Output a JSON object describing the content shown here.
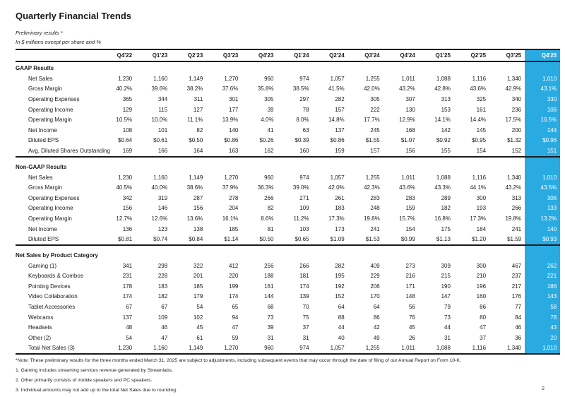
{
  "page": {
    "title": "Quarterly Financial Trends",
    "subtitle1": "Preliminary results *",
    "subtitle2": "In $ millions except per share and %",
    "page_number": "2",
    "highlight_color": "#29ABE2"
  },
  "table": {
    "columns": [
      "Q4'22",
      "Q1'23",
      "Q2'23",
      "Q3'23",
      "Q4'23",
      "Q1'24",
      "Q2'24",
      "Q3'24",
      "Q4'24",
      "Q1'25",
      "Q2'25",
      "Q3'25",
      "Q4'25"
    ],
    "highlight_column": "Q4'25",
    "sections": [
      {
        "title": "GAAP Results",
        "rows": [
          {
            "label": "Net Sales",
            "values": [
              "1,230",
              "1,160",
              "1,149",
              "1,270",
              "960",
              "974",
              "1,057",
              "1,255",
              "1,011",
              "1,088",
              "1,116",
              "1,340",
              "1,010"
            ]
          },
          {
            "label": "Gross Margin",
            "values": [
              "40.2%",
              "39.6%",
              "38.2%",
              "37.6%",
              "35.8%",
              "38.5%",
              "41.5%",
              "42.0%",
              "43.2%",
              "42.8%",
              "43.6%",
              "42.9%",
              "43.1%"
            ]
          },
          {
            "label": "Operating Expenses",
            "values": [
              "365",
              "344",
              "311",
              "301",
              "305",
              "297",
              "282",
              "305",
              "307",
              "313",
              "325",
              "340",
              "330"
            ]
          },
          {
            "label": "Operating Income",
            "values": [
              "129",
              "115",
              "127",
              "177",
              "39",
              "78",
              "157",
              "222",
              "130",
              "153",
              "161",
              "236",
              "106"
            ]
          },
          {
            "label": "Operating Margin",
            "values": [
              "10.5%",
              "10.0%",
              "11.1%",
              "13.9%",
              "4.0%",
              "8.0%",
              "14.8%",
              "17.7%",
              "12.9%",
              "14.1%",
              "14.4%",
              "17.5%",
              "10.5%"
            ]
          },
          {
            "label": "Net Income",
            "values": [
              "108",
              "101",
              "82",
              "140",
              "41",
              "63",
              "137",
              "245",
              "168",
              "142",
              "145",
              "200",
              "144"
            ]
          },
          {
            "label": "Diluted EPS",
            "values": [
              "$0.64",
              "$0.61",
              "$0.50",
              "$0.86",
              "$0.26",
              "$0.39",
              "$0.86",
              "$1.55",
              "$1.07",
              "$0.92",
              "$0.95",
              "$1.32",
              "$0.96"
            ]
          },
          {
            "label": "Avg. Diluted Shares Outstanding",
            "values": [
              "169",
              "166",
              "164",
              "163",
              "162",
              "160",
              "159",
              "157",
              "156",
              "155",
              "154",
              "152",
              "151"
            ]
          }
        ]
      },
      {
        "title": "Non-GAAP Results",
        "rows": [
          {
            "label": "Net Sales",
            "values": [
              "1,230",
              "1,160",
              "1,149",
              "1,270",
              "960",
              "974",
              "1,057",
              "1,255",
              "1,011",
              "1,088",
              "1,116",
              "1,340",
              "1,010"
            ]
          },
          {
            "label": "Gross Margin",
            "values": [
              "40.5%",
              "40.0%",
              "38.6%",
              "37.9%",
              "36.3%",
              "39.0%",
              "42.0%",
              "42.3%",
              "43.6%",
              "43.3%",
              "44.1%",
              "43.2%",
              "43.5%"
            ]
          },
          {
            "label": "Operating Expenses",
            "values": [
              "342",
              "319",
              "287",
              "278",
              "266",
              "271",
              "261",
              "283",
              "283",
              "289",
              "300",
              "313",
              "306"
            ]
          },
          {
            "label": "Operating Income",
            "values": [
              "156",
              "146",
              "156",
              "204",
              "82",
              "109",
              "183",
              "248",
              "159",
              "182",
              "193",
              "266",
              "133"
            ]
          },
          {
            "label": "Operating Margin",
            "values": [
              "12.7%",
              "12.6%",
              "13.6%",
              "16.1%",
              "8.6%",
              "11.2%",
              "17.3%",
              "19.8%",
              "15.7%",
              "16.8%",
              "17.3%",
              "19.8%",
              "13.2%"
            ]
          },
          {
            "label": "Net Income",
            "values": [
              "136",
              "123",
              "138",
              "185",
              "81",
              "103",
              "173",
              "241",
              "154",
              "175",
              "184",
              "241",
              "140"
            ]
          },
          {
            "label": "Diluted EPS",
            "values": [
              "$0.81",
              "$0.74",
              "$0.84",
              "$1.14",
              "$0.50",
              "$0.65",
              "$1.09",
              "$1.53",
              "$0.99",
              "$1.13",
              "$1.20",
              "$1.59",
              "$0.93"
            ]
          }
        ]
      },
      {
        "title": "Net Sales by Product Category",
        "rows": [
          {
            "label": "Gaming (1)",
            "values": [
              "341",
              "298",
              "322",
              "412",
              "256",
              "266",
              "282",
              "409",
              "273",
              "309",
              "300",
              "467",
              "262"
            ]
          },
          {
            "label": "Keyboards & Combos",
            "values": [
              "231",
              "228",
              "201",
              "220",
              "188",
              "181",
              "195",
              "229",
              "216",
              "215",
              "210",
              "237",
              "221"
            ]
          },
          {
            "label": "Pointing Devices",
            "values": [
              "178",
              "183",
              "185",
              "199",
              "161",
              "174",
              "192",
              "206",
              "171",
              "190",
              "196",
              "217",
              "186"
            ]
          },
          {
            "label": "Video Collaboration",
            "values": [
              "174",
              "182",
              "179",
              "174",
              "144",
              "139",
              "152",
              "170",
              "148",
              "147",
              "160",
              "176",
              "143"
            ]
          },
          {
            "label": "Tablet Accessories",
            "values": [
              "67",
              "67",
              "54",
              "65",
              "68",
              "70",
              "64",
              "64",
              "56",
              "79",
              "86",
              "77",
              "58"
            ]
          },
          {
            "label": "Webcams",
            "values": [
              "137",
              "109",
              "102",
              "94",
              "73",
              "75",
              "88",
              "86",
              "76",
              "73",
              "80",
              "84",
              "78"
            ]
          },
          {
            "label": "Headsets",
            "values": [
              "48",
              "46",
              "45",
              "47",
              "39",
              "37",
              "44",
              "42",
              "45",
              "44",
              "47",
              "46",
              "43"
            ]
          },
          {
            "label": "Other (2)",
            "values": [
              "54",
              "47",
              "61",
              "59",
              "31",
              "31",
              "40",
              "49",
              "26",
              "31",
              "37",
              "36",
              "20"
            ]
          },
          {
            "label": "Total Net Sales (3)",
            "values": [
              "1,230",
              "1,160",
              "1,149",
              "1,270",
              "960",
              "974",
              "1,057",
              "1,255",
              "1,011",
              "1,088",
              "1,116",
              "1,340",
              "1,010"
            ]
          }
        ]
      }
    ]
  },
  "notes": {
    "asterisk_note": "*Note: These preliminary results for the three months ended March 31, 2025 are subject to adjustments, including subsequent events that may occur through the date of filing of our Annual Report on Form 10-K.",
    "footnotes": [
      "1. Gaming includes streaming services revenue generated by Streamlabs.",
      "2. Other primarily consists of mobile speakers and PC speakers.",
      "3. Individual amounts may not add up to the total Net Sales due to rounding."
    ]
  }
}
